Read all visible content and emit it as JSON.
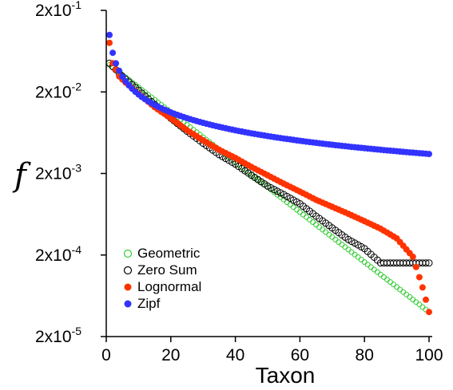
{
  "chart_data": {
    "type": "scatter",
    "title": "",
    "xlabel": "Taxon",
    "ylabel": "f",
    "xlim": [
      0,
      100
    ],
    "ylim": [
      2e-05,
      0.2
    ],
    "yscale": "log",
    "x_ticks": [
      0,
      20,
      40,
      60,
      80,
      100
    ],
    "y_ticks": [
      {
        "value": 0.2,
        "base": "2x10",
        "exp": "-1"
      },
      {
        "value": 0.02,
        "base": "2x10",
        "exp": "-2"
      },
      {
        "value": 0.002,
        "base": "2x10",
        "exp": "-3"
      },
      {
        "value": 0.0002,
        "base": "2x10",
        "exp": "-4"
      },
      {
        "value": 2e-05,
        "base": "2x10",
        "exp": "-5"
      }
    ],
    "legend_position": "bottom-left",
    "grid": false,
    "series": [
      {
        "name": "Geometric",
        "marker": "open-circle",
        "color": "#33cc33",
        "x_start": 1,
        "x_end": 100,
        "y_start": 0.043,
        "y_end": 4e-05,
        "shape": "exponential"
      },
      {
        "name": "Zero Sum",
        "marker": "open-circle",
        "color": "#000000",
        "x": [
          1,
          5,
          10,
          15,
          20,
          25,
          30,
          35,
          40,
          45,
          50,
          55,
          60,
          65,
          70,
          75,
          80,
          85,
          90,
          95,
          100
        ],
        "y": [
          0.045,
          0.031,
          0.021,
          0.014,
          0.0095,
          0.0066,
          0.0047,
          0.0034,
          0.0026,
          0.0019,
          0.0014,
          0.0011,
          0.00085,
          0.0006,
          0.00043,
          0.00031,
          0.00024,
          0.00016,
          0.00016,
          0.00016,
          0.00016
        ]
      },
      {
        "name": "Lognormal",
        "marker": "filled-circle",
        "color": "#ff3300",
        "x": [
          1,
          2,
          4,
          6,
          10,
          15,
          20,
          25,
          30,
          35,
          40,
          45,
          50,
          55,
          60,
          65,
          70,
          75,
          80,
          85,
          90,
          95,
          98,
          100
        ],
        "y": [
          0.08,
          0.045,
          0.031,
          0.026,
          0.019,
          0.013,
          0.0095,
          0.0068,
          0.0051,
          0.0039,
          0.0031,
          0.0024,
          0.0019,
          0.0015,
          0.0012,
          0.00095,
          0.00078,
          0.00064,
          0.00052,
          0.00042,
          0.00032,
          0.00019,
          8e-05,
          4e-05
        ]
      },
      {
        "name": "Zipf",
        "marker": "filled-circle",
        "color": "#3333ff",
        "a": 0.1,
        "b": 0.73,
        "x_start": 1,
        "x_end": 100
      }
    ]
  }
}
